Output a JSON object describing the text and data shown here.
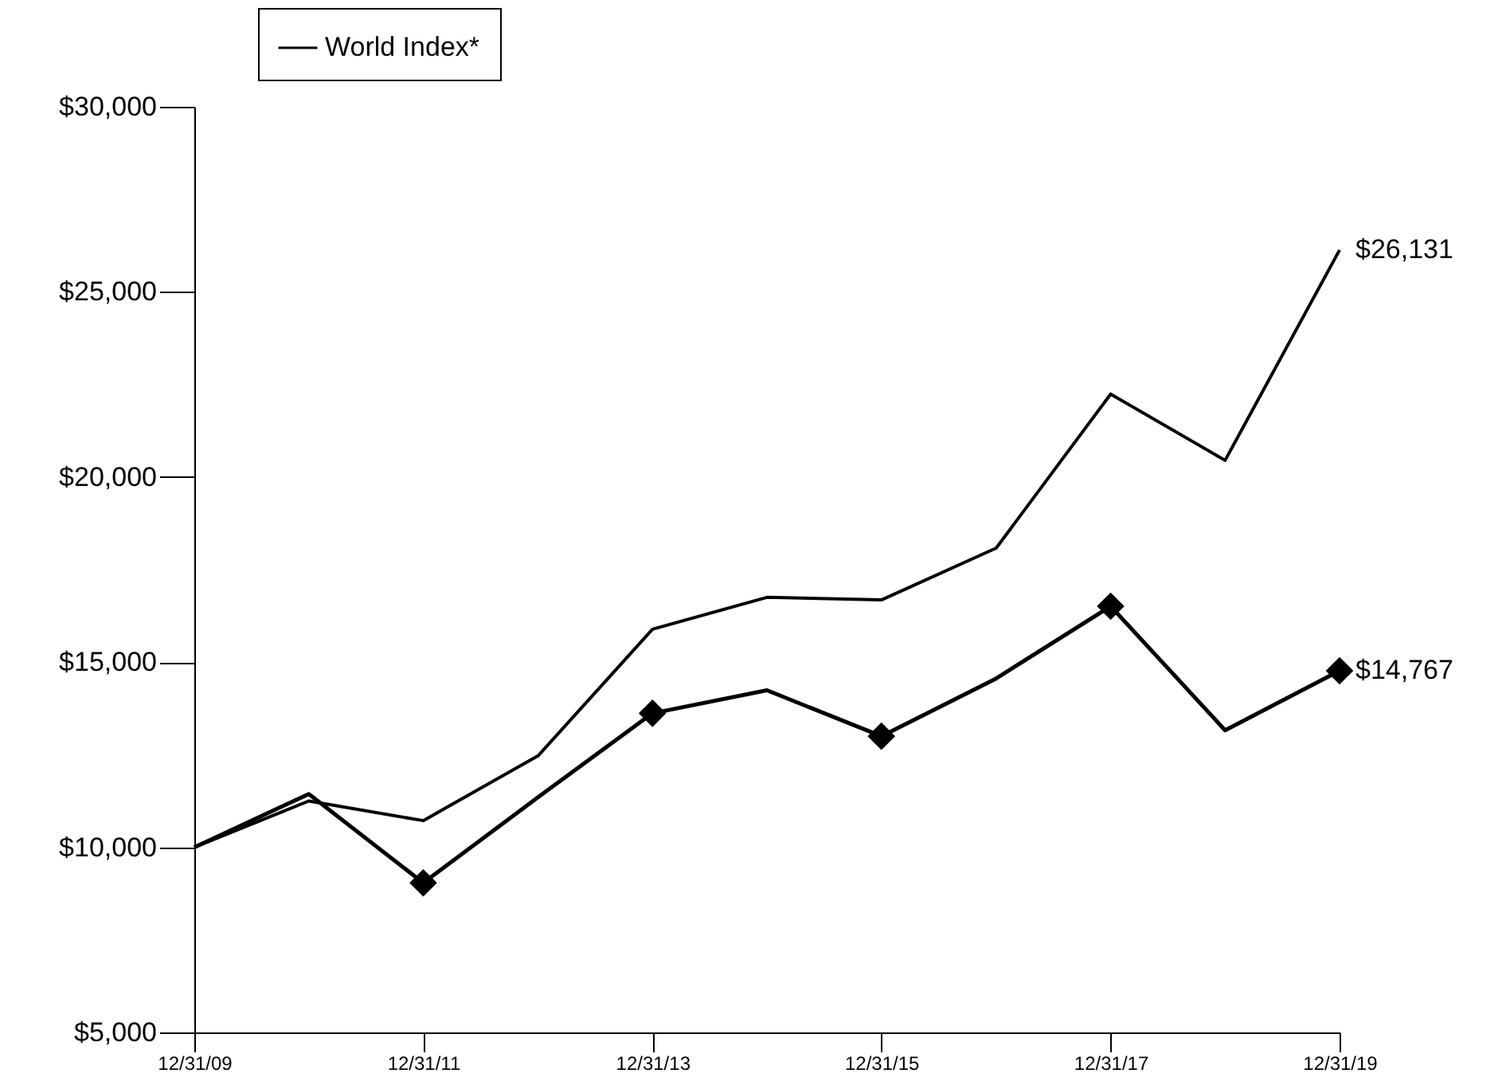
{
  "chart_data": {
    "type": "line",
    "x": [
      "2009-12-31",
      "2010-12-31",
      "2011-12-31",
      "2012-12-31",
      "2013-12-31",
      "2014-12-31",
      "2015-12-31",
      "2016-12-31",
      "2017-12-31",
      "2018-12-31",
      "2019-12-31"
    ],
    "series": [
      {
        "color": "#000000",
        "values": [
          10000,
          11440,
          9040,
          11350,
          13620,
          14240,
          13000,
          14560,
          16510,
          13160,
          14767
        ],
        "value_labels": [
          null,
          null,
          null,
          null,
          null,
          null,
          null,
          null,
          null,
          null,
          "$14,767"
        ]
      },
      {
        "type": "scatter",
        "color": "#000000",
        "marker": "diamond",
        "x": [
          "2011-12-31",
          "2013-12-31",
          "2015-12-31",
          "2017-12-31",
          "2019-12-31"
        ],
        "values": [
          9040,
          13620,
          13000,
          16510,
          14767
        ]
      },
      {
        "name": "World Index*",
        "color": "#000000",
        "values": [
          10000,
          11250,
          10720,
          12470,
          15890,
          16750,
          16680,
          18080,
          22240,
          20450,
          26131
        ],
        "value_labels": [
          null,
          null,
          null,
          null,
          null,
          null,
          null,
          null,
          null,
          null,
          "$26,131"
        ]
      }
    ],
    "xlim": [
      "2009-12-31",
      "2019-12-31"
    ],
    "xticks": [
      {
        "value": "2009-12-31",
        "label": "12/31/09"
      },
      {
        "value": "2011-12-31",
        "label": "12/31/11"
      },
      {
        "value": "2013-12-31",
        "label": "12/31/13"
      },
      {
        "value": "2015-12-31",
        "label": "12/31/15"
      },
      {
        "value": "2017-12-31",
        "label": "12/31/17"
      },
      {
        "value": "2019-12-31",
        "label": "12/31/19"
      }
    ],
    "ylim": [
      5000,
      30000
    ],
    "yticks": [
      {
        "value": 5000,
        "label": "$5,000"
      },
      {
        "value": 10000,
        "label": "$10,000"
      },
      {
        "value": 15000,
        "label": "$15,000"
      },
      {
        "value": 20000,
        "label": "$20,000"
      },
      {
        "value": 25000,
        "label": "$25,000"
      },
      {
        "value": 30000,
        "label": "$30,000"
      }
    ],
    "grid": false,
    "legend": "top left"
  }
}
